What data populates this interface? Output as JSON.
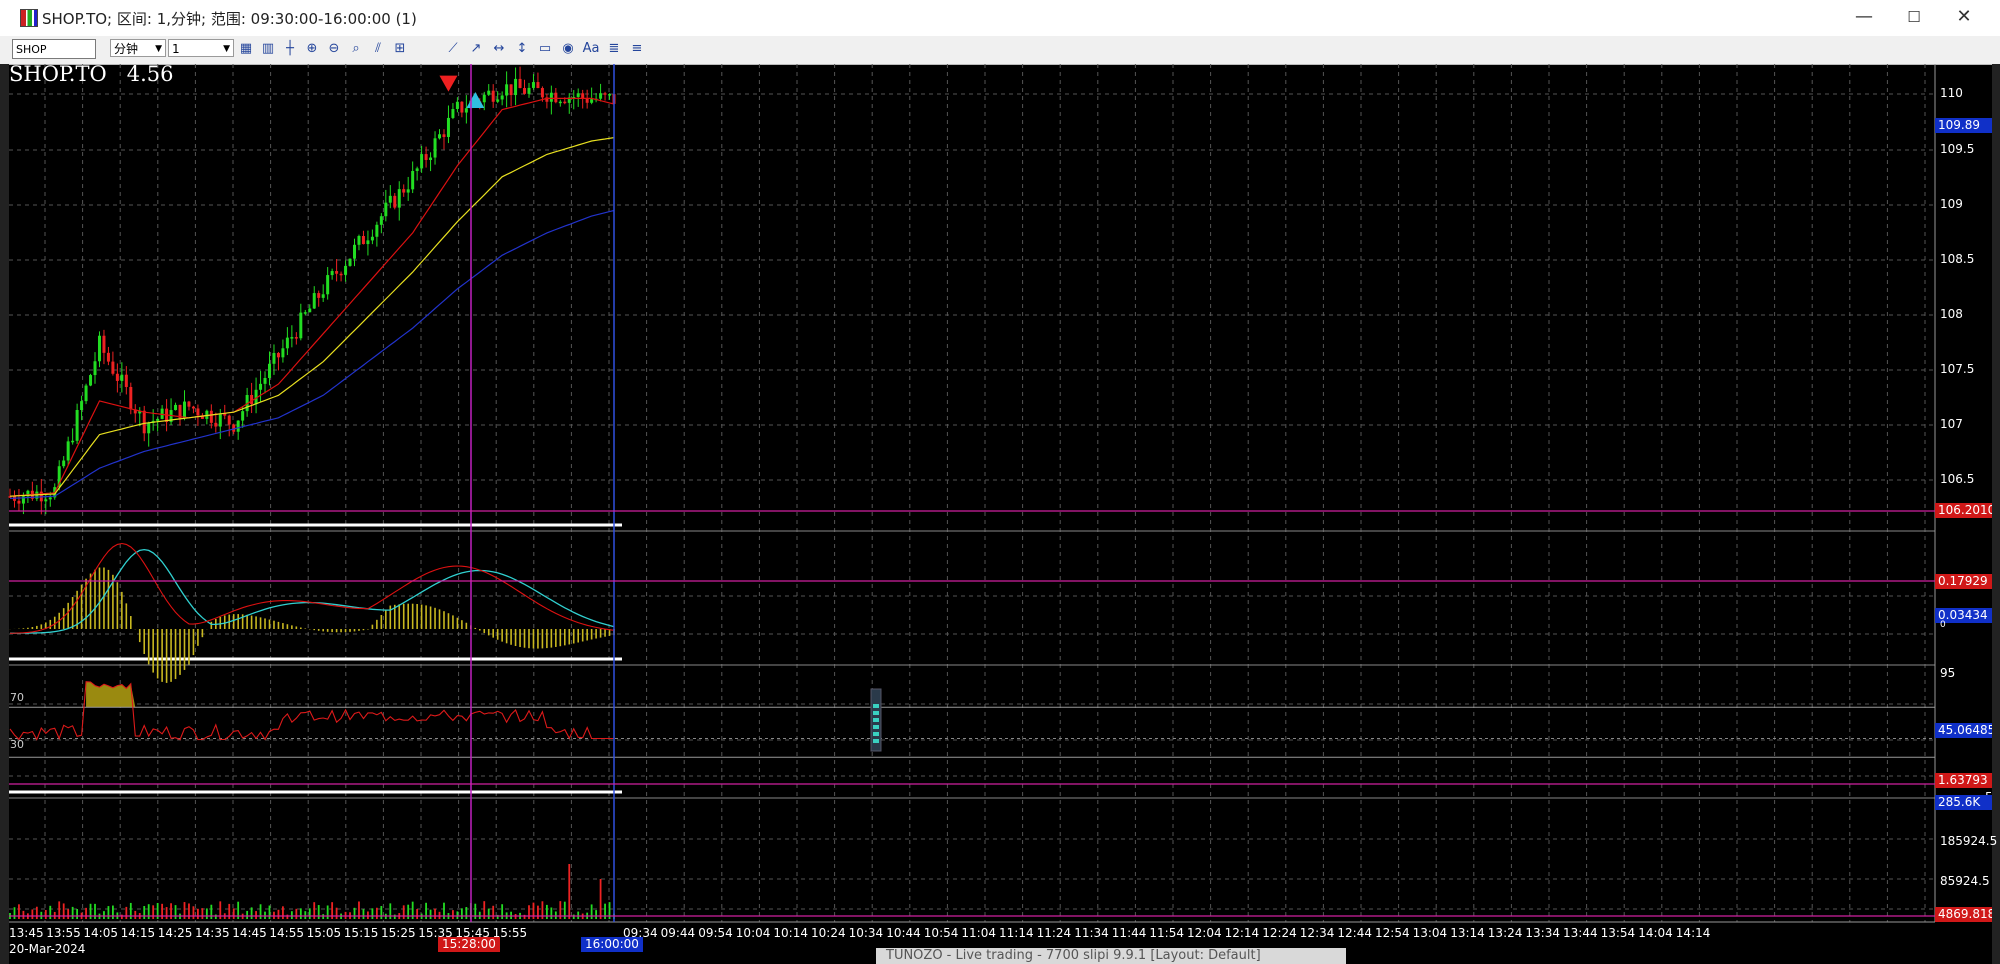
{
  "window": {
    "title": "SHOP.TO; 区间: 1,分钟; 范围: 09:30:00-16:00:00 (1)",
    "minimize": "—",
    "maximize": "☐",
    "close": "✕"
  },
  "toolbar": {
    "symbol_value": "SHOP",
    "interval_unit": "分钟",
    "interval_value": "1",
    "tool_icons": [
      "data-window-icon",
      "candles-icon",
      "crosshair-icon",
      "zoom-in-icon",
      "zoom-out-icon",
      "zoom-reset-icon",
      "indicator-icon",
      "add-icon",
      "trendline-icon",
      "ray-icon",
      "horizontal-line-icon",
      "vertical-line-icon",
      "rectangle-icon",
      "ellipse-icon",
      "text-icon",
      "list-icon",
      "settings-icon"
    ]
  },
  "chart": {
    "symbol_label": "SHOP.TO",
    "change_label": "4.56",
    "date_label": "20-Mar-2024",
    "price_ticks": [
      "110",
      "109.5",
      "109",
      "108.5",
      "108",
      "107.5",
      "107",
      "106.5"
    ],
    "last_price": "109.89",
    "ref_line_price": "106.2010",
    "macd_values": [
      "0.17929",
      "0.03434"
    ],
    "macd_zero": "0",
    "rsi_top": "95",
    "rsi_levels": [
      "70",
      "30"
    ],
    "rsi_value": "45.06485",
    "rsi_mag": "1.63793",
    "rsi_extra": "5",
    "volume_value": "285.6K",
    "volume_ticks": [
      "185924.5",
      "85924.5"
    ],
    "volume_min": "4869.818",
    "time_ticks": [
      "13:45",
      "13:55",
      "14:05",
      "14:15",
      "14:25",
      "14:35",
      "14:45",
      "14:55",
      "15:05",
      "15:15",
      "15:25",
      "15:35",
      "15:45",
      "15:55",
      "09:34",
      "09:44",
      "09:54",
      "10:04",
      "10:14",
      "10:24",
      "10:34",
      "10:44",
      "10:54",
      "11:04",
      "11:14",
      "11:24",
      "11:34",
      "11:44",
      "11:54",
      "12:04",
      "12:14",
      "12:24",
      "12:34",
      "12:44",
      "12:54",
      "13:04",
      "13:14",
      "13:24",
      "13:34",
      "13:44",
      "13:54",
      "14:04",
      "14:14"
    ],
    "cursor_time_1": "15:28:00",
    "cursor_time_2": "16:00:00",
    "colors": {
      "up": "#22dd22",
      "down": "#ee2222",
      "ma_fast": "#dd1111",
      "ma_mid": "#e8e020",
      "ma_slow": "#2233cc",
      "macd_signal": "#30d0d0",
      "vline": "#c020c0",
      "hline": "#d020a0"
    }
  },
  "background_window": {
    "status_text": "TUNOZO - Live trading - 7700 slipi 9.9.1 [Layout: Default]"
  },
  "chart_data": {
    "type": "line",
    "title": "SHOP.TO",
    "x": [
      "13:45",
      "13:55",
      "14:05",
      "14:15",
      "14:25",
      "14:35",
      "14:45",
      "14:55",
      "15:05",
      "15:15",
      "15:25",
      "15:35",
      "15:45",
      "15:55",
      "16:00"
    ],
    "series": [
      {
        "values": [
          106.35,
          106.4,
          107.7,
          107.0,
          107.15,
          107.0,
          107.6,
          108.2,
          108.7,
          109.2,
          109.8,
          110.0,
          109.95,
          109.9,
          109.89
        ]
      },
      {
        "values": [
          106.35,
          106.38,
          107.2,
          107.1,
          107.05,
          107.1,
          107.35,
          107.8,
          108.25,
          108.7,
          109.3,
          109.8,
          109.9,
          109.9,
          109.85
        ]
      },
      {
        "values": [
          106.35,
          106.37,
          106.9,
          107.0,
          107.05,
          107.1,
          107.25,
          107.55,
          107.95,
          108.35,
          108.8,
          109.2,
          109.4,
          109.52,
          109.55
        ]
      },
      {
        "values": [
          106.33,
          106.35,
          106.6,
          106.75,
          106.85,
          106.95,
          107.05,
          107.25,
          107.55,
          107.85,
          108.2,
          108.5,
          108.7,
          108.85,
          108.9
        ]
      }
    ],
    "ylim": [
      106.2,
      110.1
    ],
    "xlabel": "",
    "ylabel": ""
  }
}
